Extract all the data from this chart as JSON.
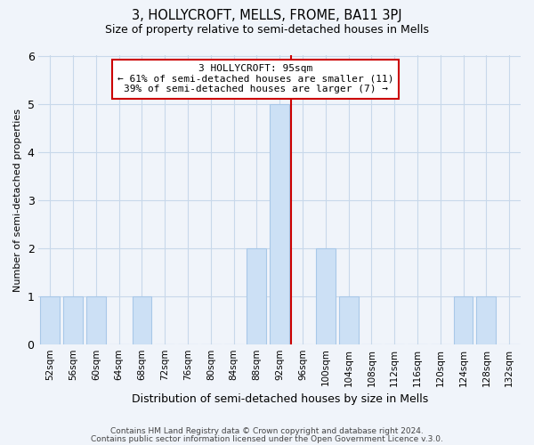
{
  "title": "3, HOLLYCROFT, MELLS, FROME, BA11 3PJ",
  "subtitle": "Size of property relative to semi-detached houses in Mells",
  "xlabel": "Distribution of semi-detached houses by size in Mells",
  "ylabel": "Number of semi-detached properties",
  "bins": [
    "52sqm",
    "56sqm",
    "60sqm",
    "64sqm",
    "68sqm",
    "72sqm",
    "76sqm",
    "80sqm",
    "84sqm",
    "88sqm",
    "92sqm",
    "96sqm",
    "100sqm",
    "104sqm",
    "108sqm",
    "112sqm",
    "116sqm",
    "120sqm",
    "124sqm",
    "128sqm",
    "132sqm"
  ],
  "counts": [
    1,
    1,
    1,
    0,
    1,
    0,
    0,
    0,
    0,
    2,
    5,
    0,
    2,
    1,
    0,
    0,
    0,
    0,
    1,
    1,
    0
  ],
  "bar_color": "#cce0f5",
  "bar_edge_color": "#a8c8e8",
  "highlight_line_color": "#cc0000",
  "highlight_bin_index": 10,
  "annotation_title": "3 HOLLYCROFT: 95sqm",
  "annotation_line1": "← 61% of semi-detached houses are smaller (11)",
  "annotation_line2": "39% of semi-detached houses are larger (7) →",
  "annotation_box_edge_color": "#cc0000",
  "ylim": [
    0,
    6
  ],
  "yticks": [
    0,
    1,
    2,
    3,
    4,
    5,
    6
  ],
  "footer_line1": "Contains HM Land Registry data © Crown copyright and database right 2024.",
  "footer_line2": "Contains public sector information licensed under the Open Government Licence v.3.0.",
  "background_color": "#f0f4fa",
  "grid_color": "#c8d8ea"
}
